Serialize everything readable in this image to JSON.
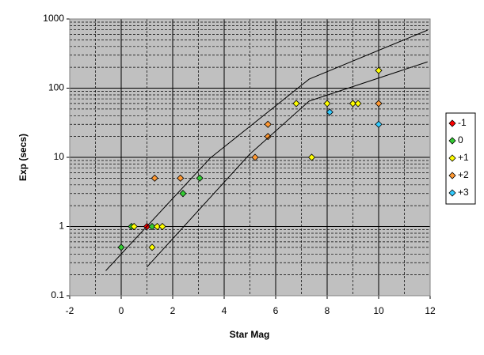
{
  "chart_data": {
    "type": "scatter",
    "x_label": "Star Mag",
    "y_label": "Exp (secs)",
    "xlim": [
      -2,
      12
    ],
    "xticks": [
      -2,
      0,
      2,
      4,
      6,
      8,
      10,
      12
    ],
    "ylim": [
      0.1,
      1000
    ],
    "yticks": [
      0.1,
      1,
      10,
      100,
      1000
    ],
    "y_log": true,
    "grid": true,
    "legend": "right",
    "series": [
      {
        "name": "-1",
        "color": "#ff0000",
        "x": [
          1.0
        ],
        "values": [
          1
        ]
      },
      {
        "name": "0",
        "color": "#33cc33",
        "x": [
          0,
          0.4,
          1.2,
          2.4,
          3.05
        ],
        "values": [
          0.5,
          1,
          1,
          3,
          5
        ]
      },
      {
        "name": "+1",
        "color": "#ffff00",
        "x": [
          0.5,
          1.2,
          1.4,
          1.6,
          6.8,
          7.4,
          8,
          9,
          9.2,
          10
        ],
        "values": [
          1,
          0.5,
          1,
          1,
          60,
          10,
          60,
          60,
          60,
          180
        ]
      },
      {
        "name": "+2",
        "color": "#ff9933",
        "x": [
          1.3,
          2.3,
          5.2,
          5.7,
          5.7,
          10
        ],
        "values": [
          5,
          5,
          10,
          30,
          20,
          60
        ]
      },
      {
        "name": "+3",
        "color": "#33ccff",
        "x": [
          8.1,
          10
        ],
        "values": [
          45,
          30
        ]
      },
      {
        "mode": "line",
        "color": "#000000",
        "x": [
          -0.6,
          3.45,
          7.3,
          11.9
        ],
        "values": [
          0.23,
          9.7,
          135,
          690
        ]
      },
      {
        "mode": "line",
        "color": "#000000",
        "x": [
          1.0,
          4.98,
          7.3,
          11.9
        ],
        "values": [
          0.26,
          11,
          65,
          240
        ]
      }
    ]
  }
}
